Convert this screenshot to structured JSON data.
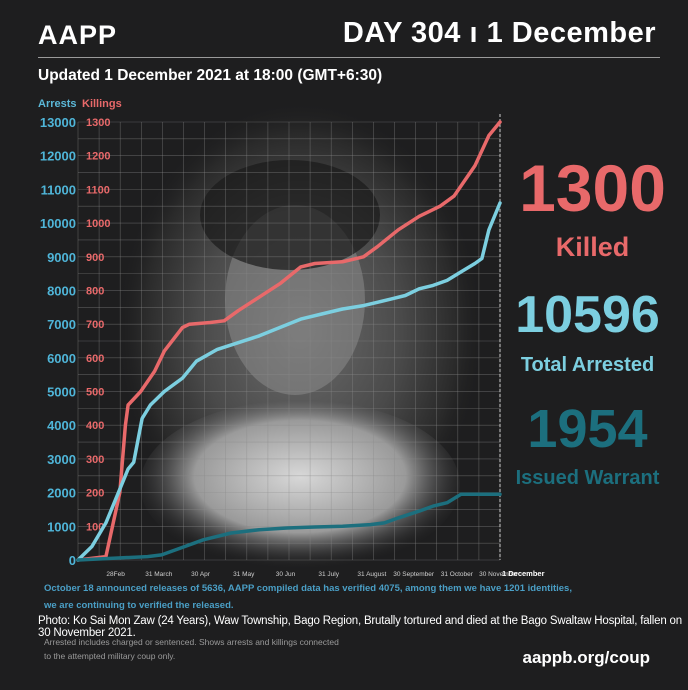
{
  "header": {
    "org": "AAPP",
    "day": "DAY 304 ı 1 December",
    "updated": "Updated 1 December 2021 at 18:00 (GMT+6:30)"
  },
  "legend": {
    "arrests": "Arrests",
    "killings": "Killings"
  },
  "stats": {
    "killed_value": "1300",
    "killed_label": "Killed",
    "arrested_value": "10596",
    "arrested_label": "Total Arrested",
    "warrant_value": "1954",
    "warrant_label": "Issued Warrant"
  },
  "notes": {
    "line1": "October 18 announced releases of 5636, AAPP compiled data has verified 4075, among them we have 1201 identities,",
    "line2": "we are continuing to verified the released.",
    "photo": "Photo: Ko Sai Mon Zaw (24 Years), Waw Township, Bago Region, Brutally tortured and died at the Bago Swaltaw Hospital, fallen on 30 November 2021.",
    "foot1": "Arrested includes charged or sentenced. Shows arrests and killings connected",
    "foot2": "to the attempted military coup only.",
    "url": "aappb.org/coup"
  },
  "colors": {
    "killings": "#e8696a",
    "arrests": "#7ccfe0",
    "warrants": "#1c6f7e",
    "arrests_axis": "#5bb8d8",
    "killings_axis": "#e8696a"
  },
  "chart_data": {
    "type": "line",
    "x_ticks": [
      "28Feb",
      "31 March",
      "30 Apr",
      "31 May",
      "30 Jun",
      "31 July",
      "31 August",
      "30 September",
      "31 October",
      "30 November",
      "1 December"
    ],
    "x_ticks_day": [
      27,
      58,
      88,
      119,
      149,
      180,
      211,
      241,
      272,
      302,
      303
    ],
    "y_left": {
      "label": "Arrests",
      "range": [
        0,
        13000
      ],
      "ticks": [
        "0",
        "1000",
        "2000",
        "3000",
        "4000",
        "5000",
        "6000",
        "7000",
        "8000",
        "9000",
        "10000",
        "11000",
        "12000",
        "13000"
      ]
    },
    "y_right": {
      "label": "Killings",
      "range": [
        0,
        1300
      ],
      "ticks": [
        "100",
        "200",
        "300",
        "400",
        "500",
        "600",
        "700",
        "800",
        "900",
        "1000",
        "1100",
        "1200",
        "1300"
      ]
    },
    "series": [
      {
        "name": "Killings",
        "axis": "right",
        "points": [
          [
            0,
            0
          ],
          [
            20,
            10
          ],
          [
            30,
            200
          ],
          [
            34,
            400
          ],
          [
            36,
            460
          ],
          [
            45,
            500
          ],
          [
            55,
            560
          ],
          [
            62,
            620
          ],
          [
            75,
            690
          ],
          [
            80,
            700
          ],
          [
            95,
            705
          ],
          [
            105,
            710
          ],
          [
            115,
            740
          ],
          [
            130,
            780
          ],
          [
            145,
            820
          ],
          [
            160,
            870
          ],
          [
            170,
            880
          ],
          [
            190,
            885
          ],
          [
            205,
            900
          ],
          [
            215,
            930
          ],
          [
            230,
            980
          ],
          [
            245,
            1020
          ],
          [
            260,
            1050
          ],
          [
            270,
            1080
          ],
          [
            285,
            1170
          ],
          [
            295,
            1260
          ],
          [
            303,
            1300
          ]
        ]
      },
      {
        "name": "Arrests",
        "axis": "left",
        "points": [
          [
            0,
            0
          ],
          [
            10,
            400
          ],
          [
            20,
            1100
          ],
          [
            30,
            2100
          ],
          [
            36,
            2700
          ],
          [
            40,
            2900
          ],
          [
            46,
            4200
          ],
          [
            52,
            4600
          ],
          [
            62,
            5000
          ],
          [
            75,
            5400
          ],
          [
            85,
            5900
          ],
          [
            100,
            6250
          ],
          [
            115,
            6450
          ],
          [
            130,
            6650
          ],
          [
            145,
            6900
          ],
          [
            160,
            7150
          ],
          [
            175,
            7300
          ],
          [
            190,
            7450
          ],
          [
            205,
            7550
          ],
          [
            215,
            7650
          ],
          [
            225,
            7750
          ],
          [
            235,
            7850
          ],
          [
            245,
            8050
          ],
          [
            255,
            8150
          ],
          [
            265,
            8300
          ],
          [
            275,
            8550
          ],
          [
            285,
            8800
          ],
          [
            290,
            8950
          ],
          [
            295,
            9800
          ],
          [
            303,
            10596
          ]
        ]
      },
      {
        "name": "Issued Warrant",
        "axis": "left",
        "points": [
          [
            0,
            0
          ],
          [
            50,
            100
          ],
          [
            60,
            150
          ],
          [
            70,
            300
          ],
          [
            90,
            600
          ],
          [
            110,
            800
          ],
          [
            130,
            900
          ],
          [
            150,
            950
          ],
          [
            170,
            980
          ],
          [
            190,
            1000
          ],
          [
            210,
            1050
          ],
          [
            220,
            1100
          ],
          [
            230,
            1250
          ],
          [
            245,
            1450
          ],
          [
            255,
            1600
          ],
          [
            265,
            1700
          ],
          [
            275,
            1950
          ],
          [
            290,
            1954
          ],
          [
            303,
            1954
          ]
        ]
      }
    ]
  }
}
